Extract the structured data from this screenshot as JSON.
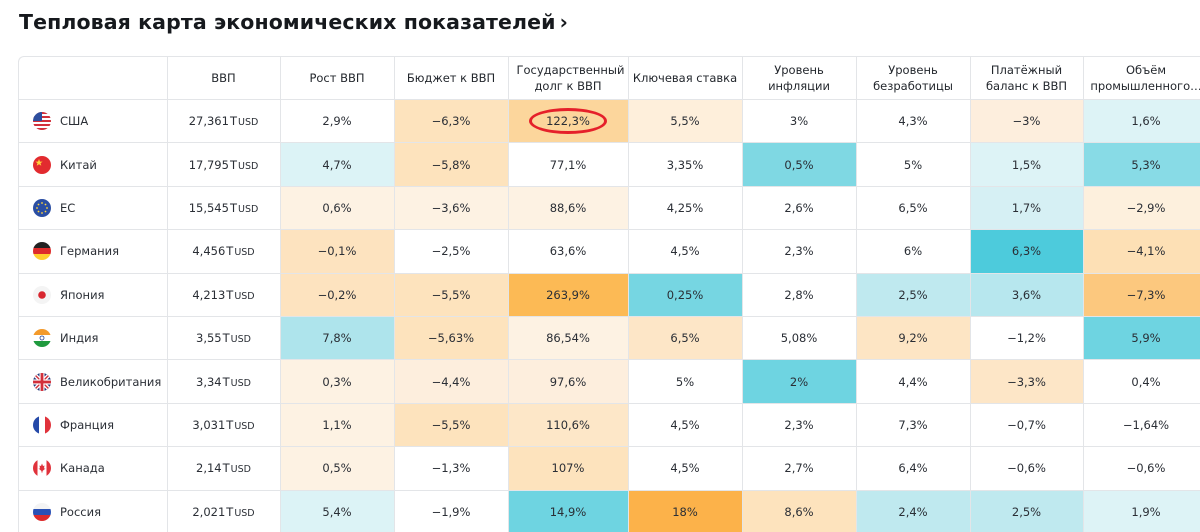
{
  "title": "Тепловая карта экономических показателей",
  "title_chevron": "›",
  "columns": [
    "ВВП",
    "Рост ВВП",
    "Бюджет к ВВП",
    "Государственный долг к ВВП",
    "Ключевая ставка",
    "Уровень инфляции",
    "Уровень безработицы",
    "Платёжный баланс к ВВП",
    "Объём промышленного…"
  ],
  "rows": [
    {
      "country": "США",
      "flag": "us-flag-icon",
      "gdp": {
        "num": "27,361",
        "t": "T",
        "unit": "USD"
      },
      "values": [
        "2,9%",
        "−6,3%",
        "122,3%",
        "5,5%",
        "3%",
        "4,3%",
        "−3%",
        "1,6%"
      ],
      "colors": [
        "#ffffff",
        "#fde3bd",
        "#fcd69c",
        "#feefdb",
        "#ffffff",
        "#ffffff",
        "#fdeedd",
        "#ddf3f6"
      ]
    },
    {
      "country": "Китай",
      "flag": "china-flag-icon",
      "gdp": {
        "num": "17,795",
        "t": "T",
        "unit": "USD"
      },
      "values": [
        "4,7%",
        "−5,8%",
        "77,1%",
        "3,35%",
        "0,5%",
        "5%",
        "1,5%",
        "5,3%"
      ],
      "colors": [
        "#dcf3f6",
        "#fde3bd",
        "#ffffff",
        "#ffffff",
        "#7fd8e3",
        "#ffffff",
        "#ddf3f6",
        "#88dbe6"
      ]
    },
    {
      "country": "ЕС",
      "flag": "eu-flag-icon",
      "gdp": {
        "num": "15,545",
        "t": "T",
        "unit": "USD"
      },
      "values": [
        "0,6%",
        "−3,6%",
        "88,6%",
        "4,25%",
        "2,6%",
        "6,5%",
        "1,7%",
        "−2,9%"
      ],
      "colors": [
        "#fdf2e3",
        "#fdf2e3",
        "#fdf2e3",
        "#ffffff",
        "#ffffff",
        "#ffffff",
        "#d6f0f4",
        "#fdf0dd"
      ]
    },
    {
      "country": "Германия",
      "flag": "germany-flag-icon",
      "gdp": {
        "num": "4,456",
        "t": "T",
        "unit": "USD"
      },
      "values": [
        "−0,1%",
        "−2,5%",
        "63,6%",
        "4,5%",
        "2,3%",
        "6%",
        "6,3%",
        "−4,1%"
      ],
      "colors": [
        "#fde3bf",
        "#ffffff",
        "#ffffff",
        "#ffffff",
        "#ffffff",
        "#ffffff",
        "#4dcbdc",
        "#fde0b5"
      ]
    },
    {
      "country": "Япония",
      "flag": "japan-flag-icon",
      "gdp": {
        "num": "4,213",
        "t": "T",
        "unit": "USD"
      },
      "values": [
        "−0,2%",
        "−5,5%",
        "263,9%",
        "0,25%",
        "2,8%",
        "2,5%",
        "3,6%",
        "−7,3%"
      ],
      "colors": [
        "#fde3bf",
        "#fde3bd",
        "#fcba55",
        "#76d6e2",
        "#ffffff",
        "#bfe9ef",
        "#b7e7ee",
        "#fcc87e"
      ]
    },
    {
      "country": "Индия",
      "flag": "india-flag-icon",
      "gdp": {
        "num": "3,55",
        "t": "T",
        "unit": "USD"
      },
      "values": [
        "7,8%",
        "−5,63%",
        "86,54%",
        "6,5%",
        "5,08%",
        "9,2%",
        "−1,2%",
        "5,9%"
      ],
      "colors": [
        "#aee4ec",
        "#fde3bd",
        "#fdf2e3",
        "#fde6c7",
        "#ffffff",
        "#fde5c4",
        "#ffffff",
        "#6ed4e1"
      ]
    },
    {
      "country": "Великобритания",
      "flag": "uk-flag-icon",
      "gdp": {
        "num": "3,34",
        "t": "T",
        "unit": "USD"
      },
      "values": [
        "0,3%",
        "−4,4%",
        "97,6%",
        "5%",
        "2%",
        "4,4%",
        "−3,3%",
        "0,4%"
      ],
      "colors": [
        "#fdf2e3",
        "#fdeedd",
        "#fdeedd",
        "#ffffff",
        "#6ed4e1",
        "#ffffff",
        "#fde6c7",
        "#ffffff"
      ]
    },
    {
      "country": "Франция",
      "flag": "france-flag-icon",
      "gdp": {
        "num": "3,031",
        "t": "T",
        "unit": "USD"
      },
      "values": [
        "1,1%",
        "−5,5%",
        "110,6%",
        "4,5%",
        "2,3%",
        "7,3%",
        "−0,7%",
        "−1,64%"
      ],
      "colors": [
        "#fdf2e3",
        "#fde3bd",
        "#fde7c8",
        "#ffffff",
        "#ffffff",
        "#ffffff",
        "#ffffff",
        "#ffffff"
      ]
    },
    {
      "country": "Канада",
      "flag": "canada-flag-icon",
      "gdp": {
        "num": "2,14",
        "t": "T",
        "unit": "USD"
      },
      "values": [
        "0,5%",
        "−1,3%",
        "107%",
        "4,5%",
        "2,7%",
        "6,4%",
        "−0,6%",
        "−0,6%"
      ],
      "colors": [
        "#fdf2e3",
        "#ffffff",
        "#fde3bd",
        "#ffffff",
        "#ffffff",
        "#ffffff",
        "#ffffff",
        "#ffffff"
      ]
    },
    {
      "country": "Россия",
      "flag": "russia-flag-icon",
      "gdp": {
        "num": "2,021",
        "t": "T",
        "unit": "USD"
      },
      "values": [
        "5,4%",
        "−1,9%",
        "14,9%",
        "18%",
        "8,6%",
        "2,4%",
        "2,5%",
        "1,9%"
      ],
      "colors": [
        "#dcf3f6",
        "#ffffff",
        "#6ed4e1",
        "#fcb24a",
        "#fde3bd",
        "#bfe9ef",
        "#bfe9ef",
        "#ddf3f6"
      ]
    }
  ],
  "highlight": {
    "row": 0,
    "col": 2
  }
}
